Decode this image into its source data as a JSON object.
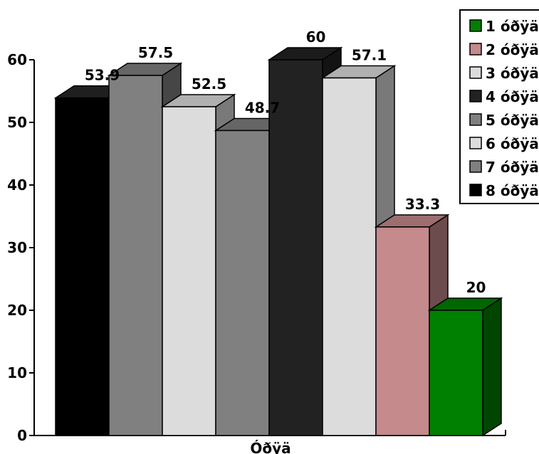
{
  "chart_data": {
    "type": "bar",
    "title": "",
    "xlabel": "Óðÿä",
    "ylabel": "",
    "categories": [
      "Óðÿä"
    ],
    "ylim": [
      0,
      60
    ],
    "yticks": [
      "0",
      "10",
      "20",
      "30",
      "40",
      "50",
      "60"
    ],
    "grid": false,
    "legend_position": "top-right",
    "series": [
      {
        "name": "8 óðÿä",
        "values": [
          53.9
        ],
        "label": "53.9",
        "color": "#000000"
      },
      {
        "name": "7 óðÿä",
        "values": [
          57.5
        ],
        "label": "57.5",
        "color": "#808080"
      },
      {
        "name": "6 óðÿä",
        "values": [
          52.5
        ],
        "label": "52.5",
        "color": "#dcdcdc"
      },
      {
        "name": "5 óðÿä",
        "values": [
          48.7
        ],
        "label": "48.7",
        "color": "#808080"
      },
      {
        "name": "4 óðÿä",
        "values": [
          60
        ],
        "label": "60",
        "color": "#222222"
      },
      {
        "name": "3 óðÿä",
        "values": [
          57.1
        ],
        "label": "57.1",
        "color": "#dcdcdc"
      },
      {
        "name": "2 óðÿä",
        "values": [
          33.3
        ],
        "label": "33.3",
        "color": "#c48a8c"
      },
      {
        "name": "1 óðÿä",
        "values": [
          20
        ],
        "label": "20",
        "color": "#008000"
      }
    ],
    "legend_order": [
      7,
      6,
      5,
      4,
      3,
      2,
      1,
      0
    ]
  }
}
